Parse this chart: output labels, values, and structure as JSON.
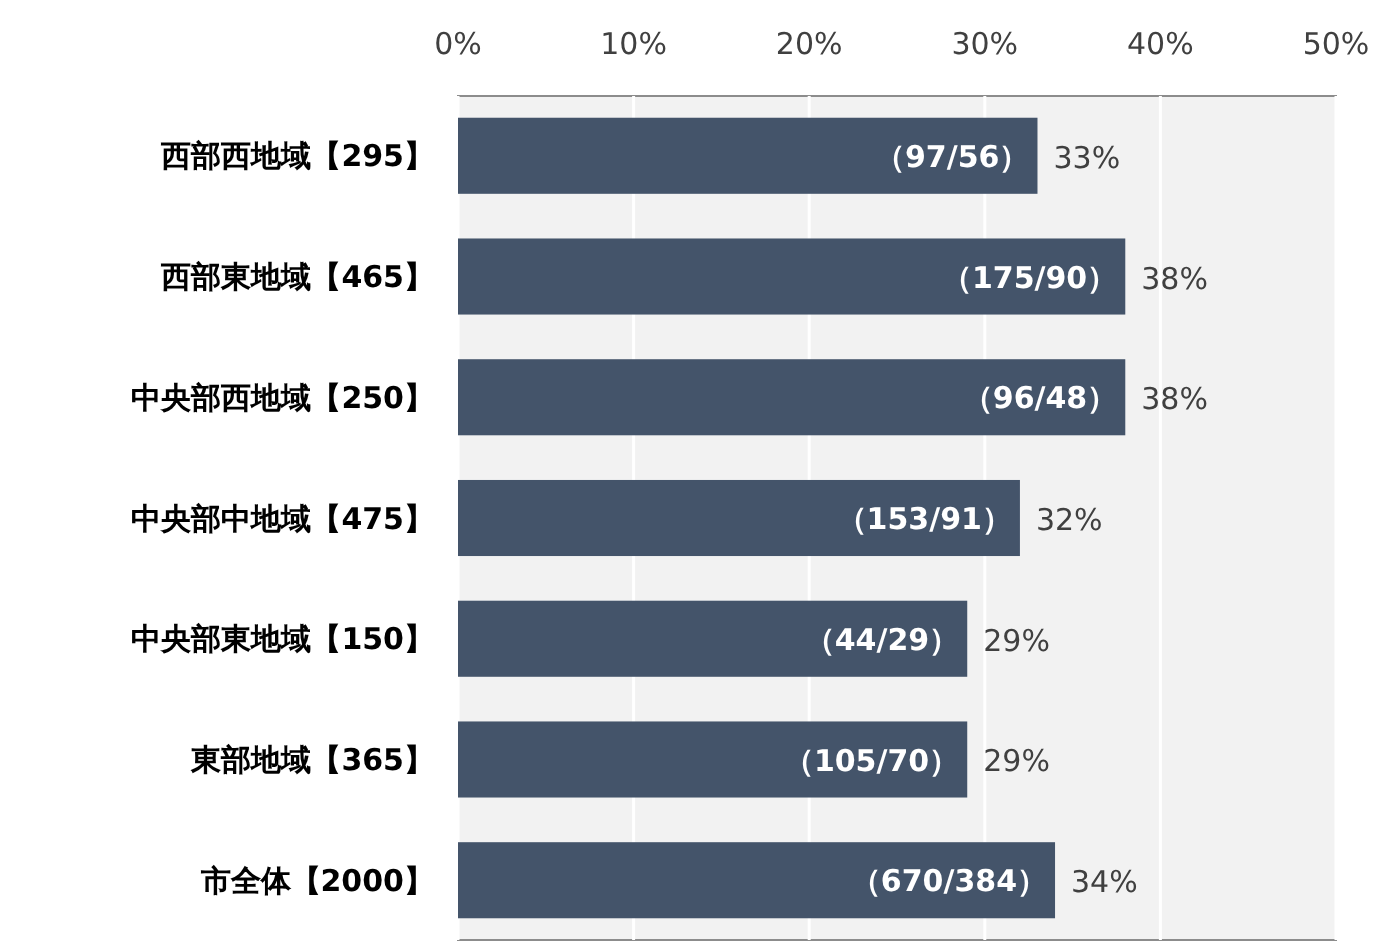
{
  "chart_data": {
    "type": "bar",
    "orientation": "horizontal",
    "categories": [
      "西部西地域【295】",
      "西部東地域【465】",
      "中央部西地域【250】",
      "中央部中地域【475】",
      "中央部東地域【150】",
      "東部地域【365】",
      "市全体【2000】"
    ],
    "values": [
      33,
      38,
      38,
      32,
      29,
      29,
      34
    ],
    "value_labels": [
      "33%",
      "38%",
      "38%",
      "32%",
      "29%",
      "29%",
      "34%"
    ],
    "color": "#44546a",
    "xlim": [
      0,
      50
    ],
    "xticks": [
      {
        "value": 0,
        "label": "0%"
      },
      {
        "value": 10,
        "label": "10%"
      },
      {
        "value": 20,
        "label": "20%"
      },
      {
        "value": 30,
        "label": "30%"
      },
      {
        "value": 40,
        "label": "40%"
      },
      {
        "value": 50,
        "label": "50%"
      }
    ],
    "grid": "x",
    "annotations": [
      {
        "text": "（97/56）",
        "x": 33,
        "y": "西部西地域【295】"
      },
      {
        "text": "（175/90）",
        "x": 38,
        "y": "西部東地域【465】"
      },
      {
        "text": "（96/48）",
        "x": 38,
        "y": "中央部西地域【250】"
      },
      {
        "text": "（153/91）",
        "x": 32,
        "y": "中央部中地域【475】"
      },
      {
        "text": "（44/29）",
        "x": 29,
        "y": "中央部東地域【150】"
      },
      {
        "text": "（105/70）",
        "x": 29,
        "y": "東部地域【365】"
      },
      {
        "text": "（670/384）",
        "x": 34,
        "y": "市全体【2000】"
      }
    ]
  }
}
